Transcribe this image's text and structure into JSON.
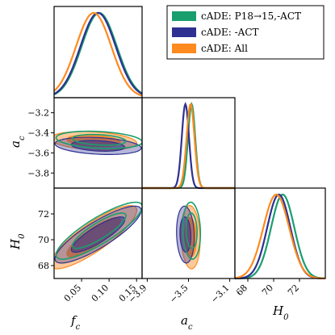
{
  "chart_data": {
    "type": "corner",
    "parameters": [
      {
        "name": "f_c",
        "label_main": "f",
        "label_sub": "c",
        "range": [
          0.0,
          0.16
        ],
        "ticks": [
          {
            "v": 0.05,
            "t": "0.05"
          },
          {
            "v": 0.1,
            "t": "0.10"
          },
          {
            "v": 0.15,
            "t": "0.15"
          }
        ]
      },
      {
        "name": "a_c",
        "label_main": "a",
        "label_sub": "c",
        "range": [
          -3.95,
          -3.05
        ],
        "ticks": [
          {
            "v": -3.9,
            "t": "−3.9"
          },
          {
            "v": -3.5,
            "t": "−3.5"
          },
          {
            "v": -3.1,
            "t": "−3.1"
          }
        ],
        "ticks_y": [
          {
            "v": -3.2,
            "t": "−3.2"
          },
          {
            "v": -3.4,
            "t": "−3.4"
          },
          {
            "v": -3.6,
            "t": "−3.6"
          },
          {
            "v": -3.8,
            "t": "−3.8"
          }
        ],
        "range_y": [
          -3.95,
          -3.05
        ]
      },
      {
        "name": "H_0",
        "label_main": "H",
        "label_sub": "0",
        "range": [
          67.0,
          74.0
        ],
        "ticks": [
          {
            "v": 68,
            "t": "68"
          },
          {
            "v": 70,
            "t": "70"
          },
          {
            "v": 72,
            "t": "72"
          }
        ],
        "ticks_y": [
          {
            "v": 68,
            "t": "68"
          },
          {
            "v": 70,
            "t": "70"
          },
          {
            "v": 72,
            "t": "72"
          }
        ],
        "range_y": [
          67.0,
          74.0
        ]
      }
    ],
    "series": [
      {
        "name": "cADE: P18→15,-ACT",
        "color": "#1a9e6e",
        "f_c": {
          "mean": 0.082,
          "sd": 0.032
        },
        "a_c": {
          "mean": -3.47,
          "sd": 0.035
        },
        "H_0": {
          "mean": 70.7,
          "sd": 0.9
        }
      },
      {
        "name": "cADE: -ACT",
        "color": "#2e3191",
        "f_c": {
          "mean": 0.08,
          "sd": 0.032
        },
        "a_c": {
          "mean": -3.53,
          "sd": 0.035
        },
        "H_0": {
          "mean": 70.4,
          "sd": 0.9
        }
      },
      {
        "name": "cADE: All",
        "color": "#ff8a1f",
        "f_c": {
          "mean": 0.072,
          "sd": 0.032
        },
        "a_c": {
          "mean": -3.48,
          "sd": 0.038
        },
        "H_0": {
          "mean": 70.2,
          "sd": 1.0
        }
      }
    ],
    "legend": {
      "placement": "top-right"
    }
  }
}
